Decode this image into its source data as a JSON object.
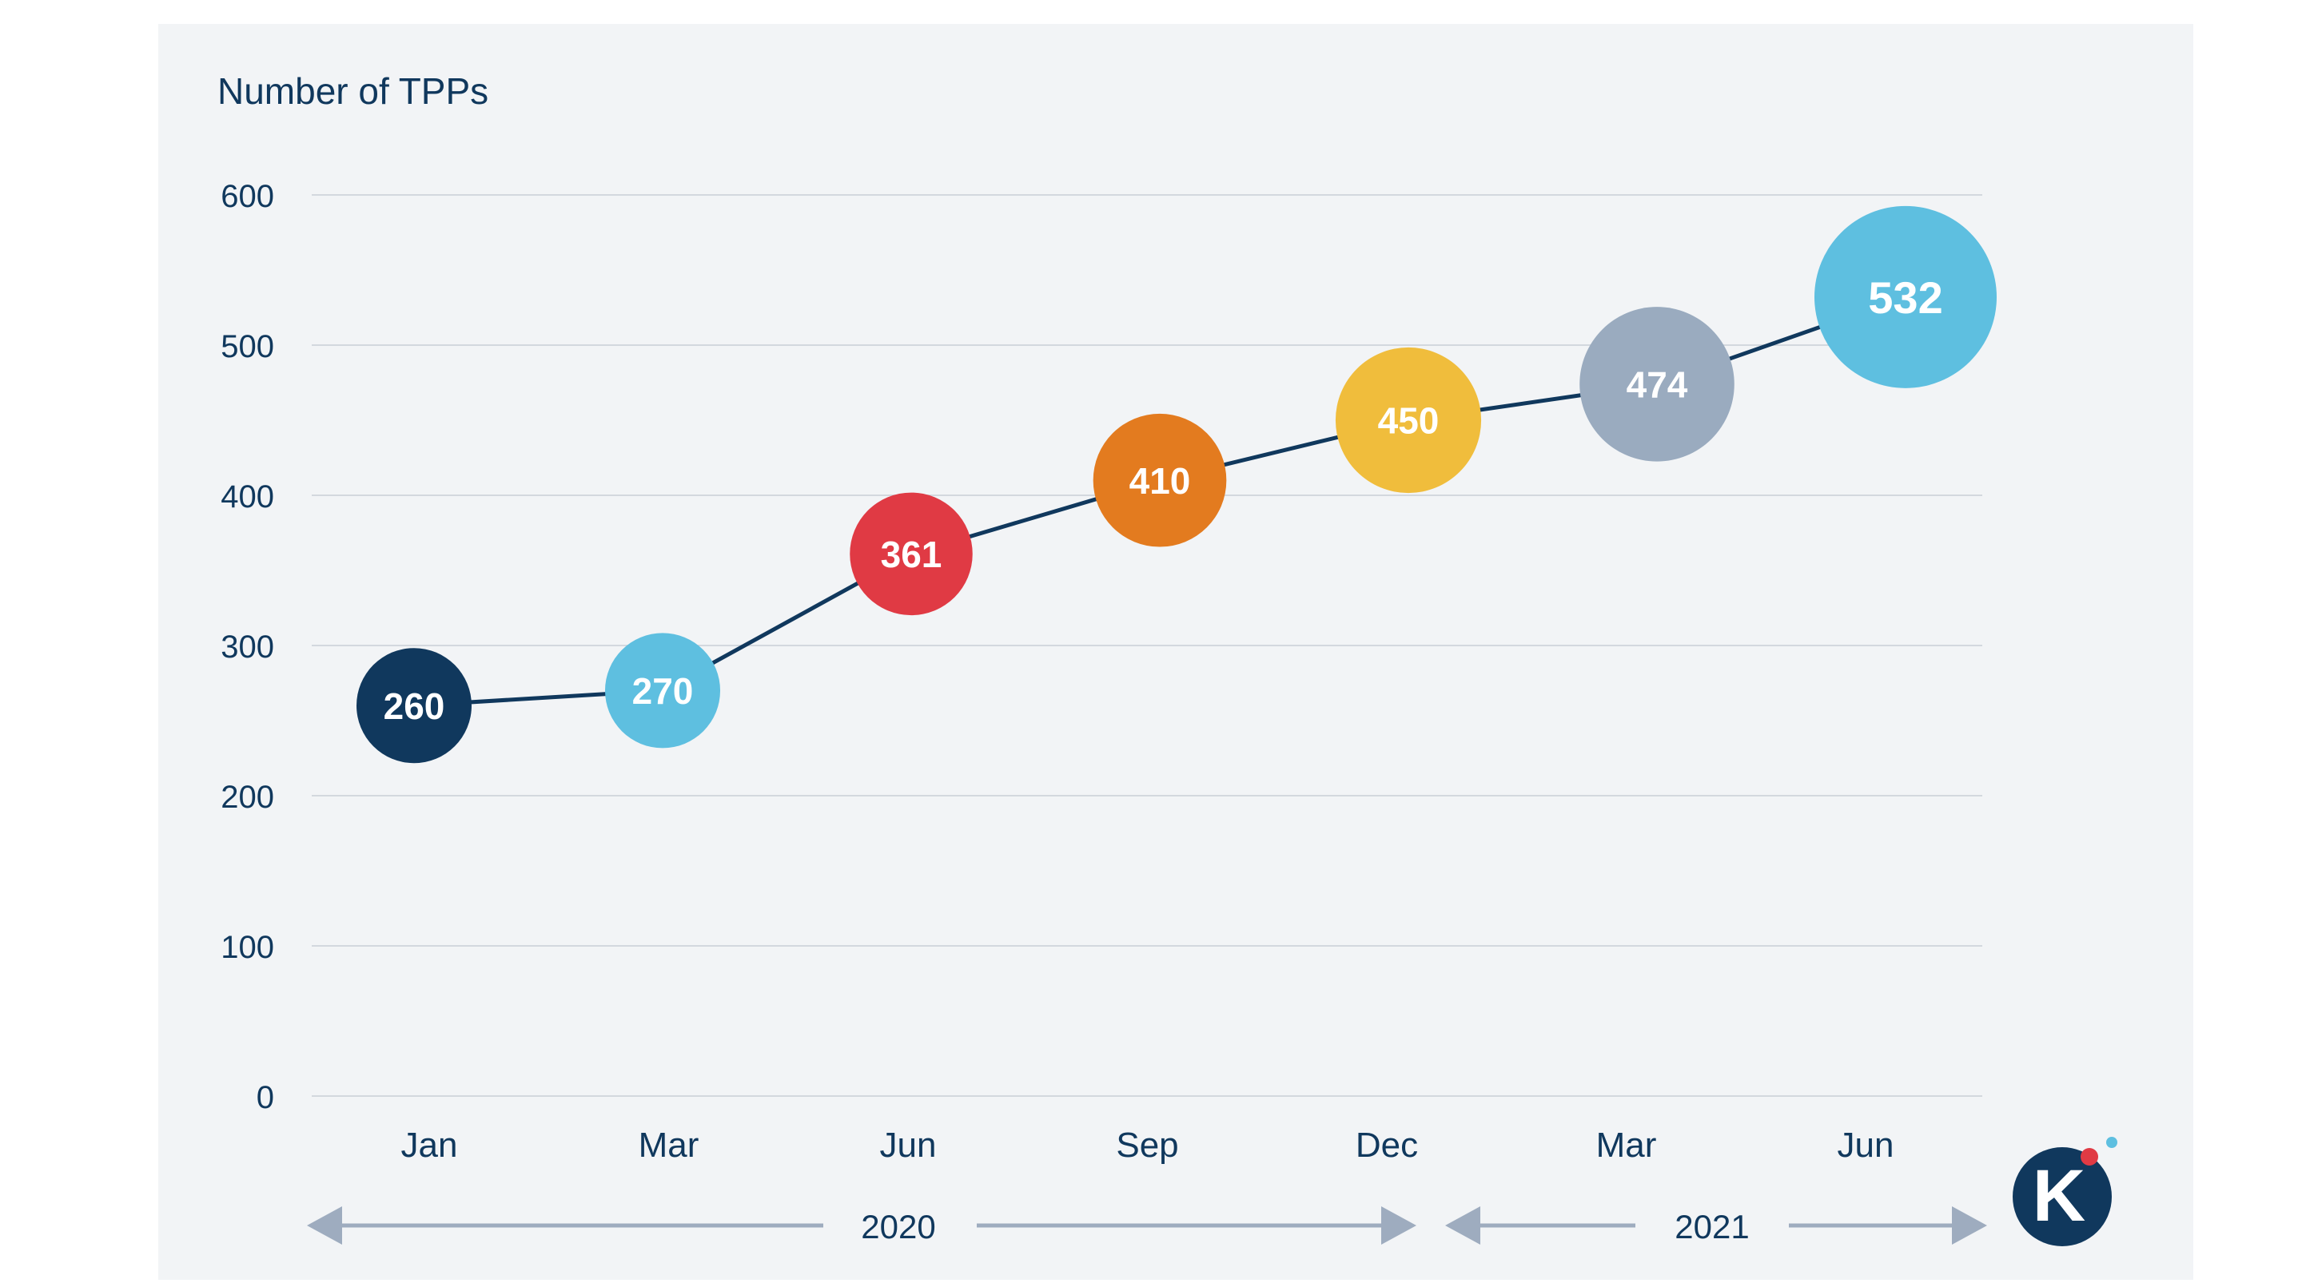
{
  "colors": {
    "panel_bg": "#f2f4f6",
    "line": "#10385d",
    "grid": "#d3d8de",
    "text": "#10385d",
    "arrow": "#9eacbf",
    "logo_dark": "#10385d",
    "logo_red": "#e03a44",
    "logo_blue": "#5ebfe0"
  },
  "logo": {
    "letter": "K"
  },
  "chart_data": {
    "type": "scatter",
    "ylabel": "Number of TPPs",
    "xlabel": "",
    "ylim": [
      0,
      600
    ],
    "yticks": [
      0,
      100,
      200,
      300,
      400,
      500,
      600
    ],
    "grid": true,
    "categories": [
      "Jan",
      "Mar",
      "Jun",
      "Sep",
      "Dec",
      "Mar",
      "Jun"
    ],
    "values": [
      260,
      270,
      361,
      410,
      450,
      474,
      532
    ],
    "point_colors": [
      "#10385d",
      "#5ebfe0",
      "#e03a44",
      "#e37b1f",
      "#f0bd3c",
      "#9aabbf",
      "#5ebfe0"
    ],
    "point_labels": [
      "260",
      "270",
      "361",
      "410",
      "450",
      "474",
      "532"
    ],
    "periods": [
      {
        "label": "2020",
        "from_category": 0,
        "to_category": 4
      },
      {
        "label": "2021",
        "from_category": 5,
        "to_category": 6
      }
    ]
  }
}
